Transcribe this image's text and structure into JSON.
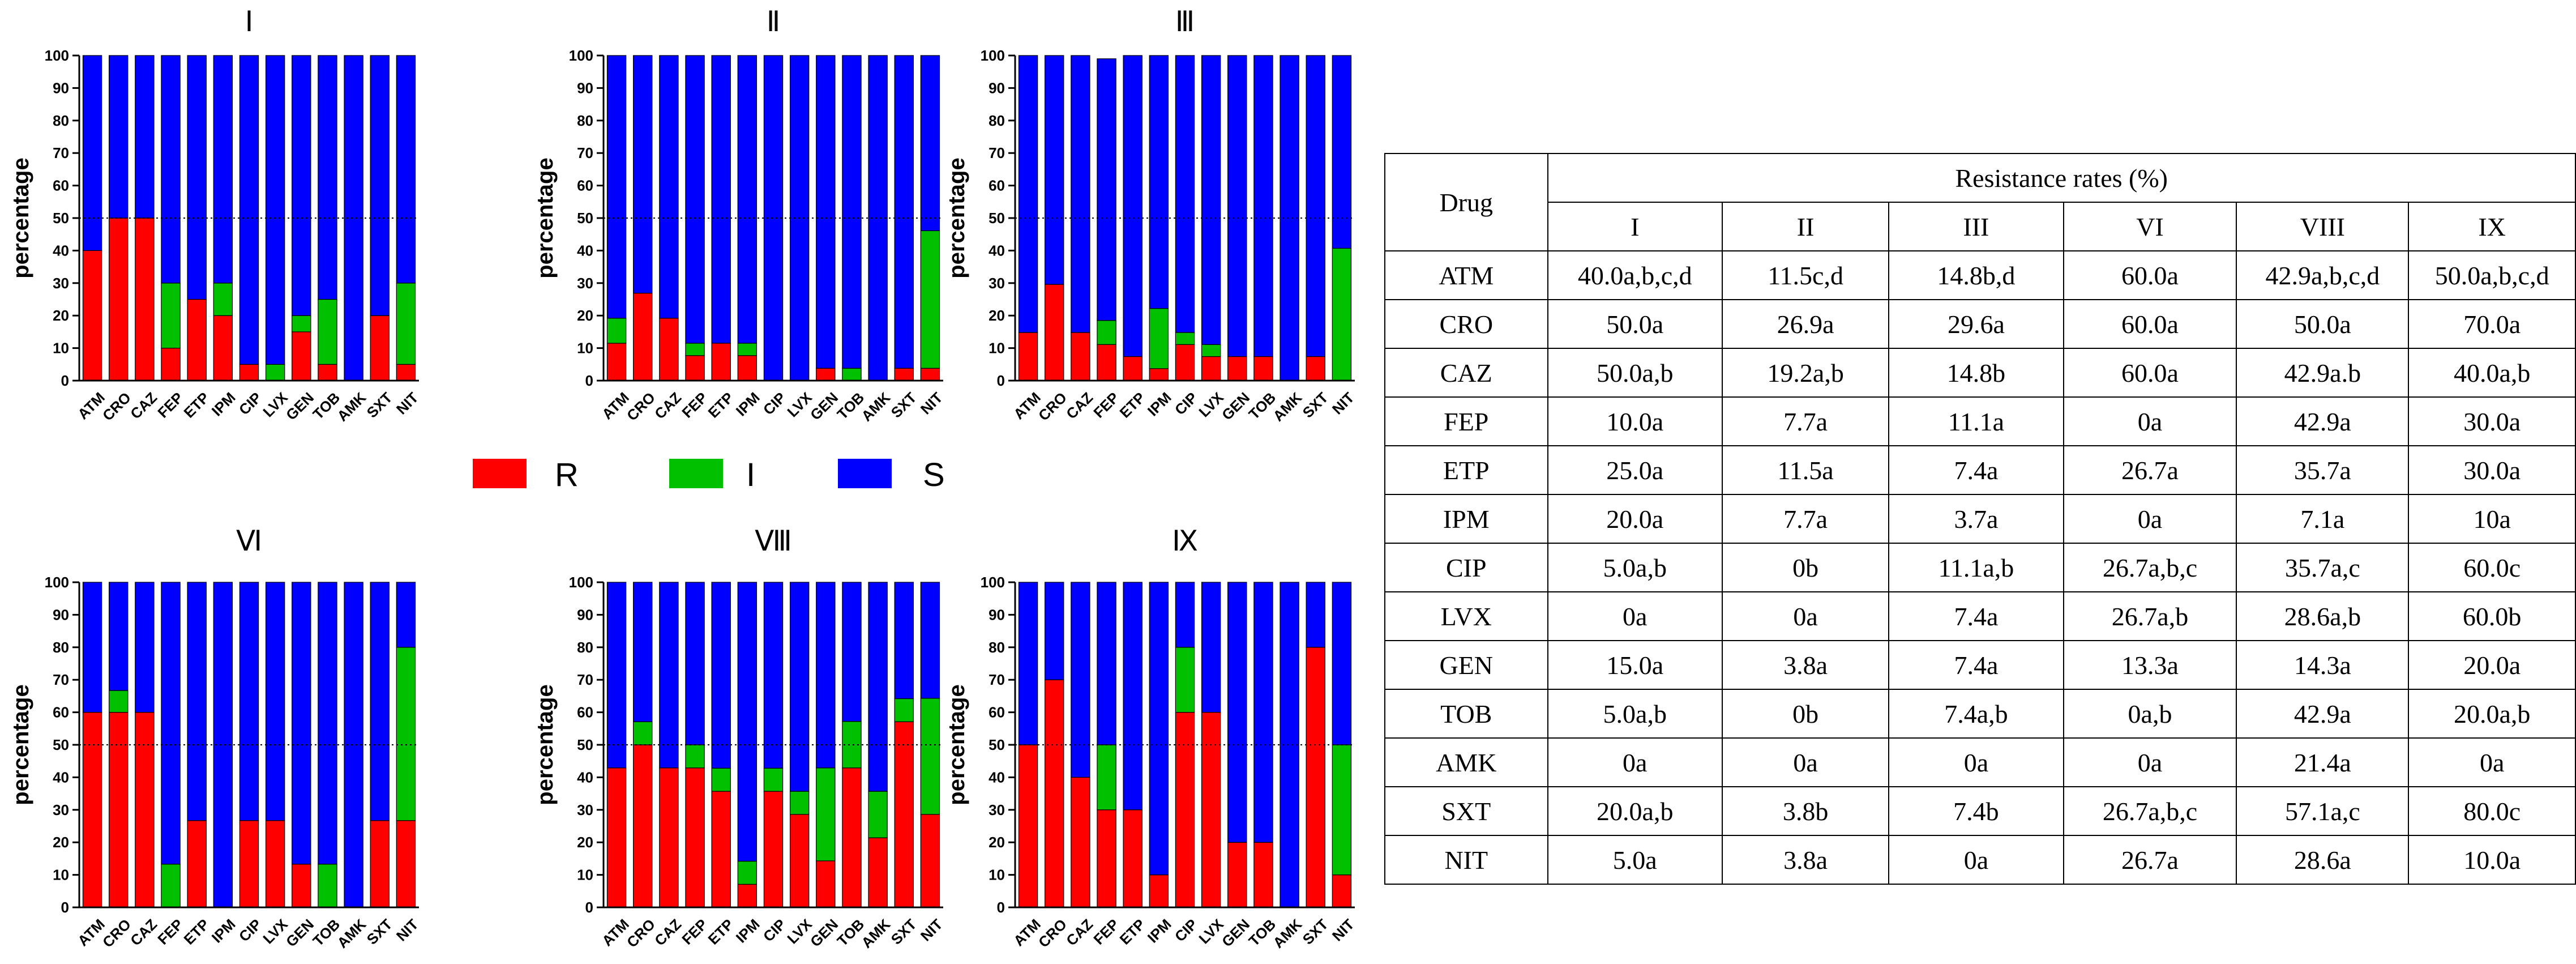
{
  "legend": [
    {
      "key": "R",
      "label": "R",
      "color": "#ff0000"
    },
    {
      "key": "I",
      "label": "I",
      "color": "#00c000"
    },
    {
      "key": "S",
      "label": "S",
      "color": "#0000ff"
    }
  ],
  "chart_data": [
    {
      "type": "bar",
      "stacked": true,
      "title": "Ⅰ",
      "ylabel": "percentage",
      "ylim": [
        0,
        100
      ],
      "yticks": [
        0,
        10,
        20,
        30,
        40,
        50,
        60,
        70,
        80,
        90,
        100
      ],
      "reference_line": 50,
      "categories": [
        "ATM",
        "CRO",
        "CAZ",
        "FEP",
        "ETP",
        "IPM",
        "CIP",
        "LVX",
        "GEN",
        "TOB",
        "AMK",
        "SXT",
        "NIT"
      ],
      "series": [
        {
          "name": "R",
          "values": [
            40,
            50,
            50,
            10,
            25,
            20,
            5,
            0,
            15,
            5,
            0,
            20,
            5
          ]
        },
        {
          "name": "I",
          "values": [
            0,
            0,
            0,
            20,
            0,
            10,
            0,
            5,
            5,
            20,
            0,
            0,
            25
          ]
        },
        {
          "name": "S",
          "values": [
            60,
            50,
            50,
            70,
            75,
            70,
            95,
            95,
            80,
            75,
            100,
            80,
            70
          ]
        }
      ]
    },
    {
      "type": "bar",
      "stacked": true,
      "title": "Ⅱ",
      "ylabel": "percentage",
      "ylim": [
        0,
        100
      ],
      "yticks": [
        0,
        10,
        20,
        30,
        40,
        50,
        60,
        70,
        80,
        90,
        100
      ],
      "reference_line": 50,
      "categories": [
        "ATM",
        "CRO",
        "CAZ",
        "FEP",
        "ETP",
        "IPM",
        "CIP",
        "LVX",
        "GEN",
        "TOB",
        "AMK",
        "SXT",
        "NIT"
      ],
      "series": [
        {
          "name": "R",
          "values": [
            11.5,
            26.9,
            19.2,
            7.7,
            11.5,
            7.7,
            0,
            0,
            3.8,
            0,
            0,
            3.8,
            3.8
          ]
        },
        {
          "name": "I",
          "values": [
            7.7,
            0,
            0,
            3.8,
            0,
            3.8,
            0,
            0,
            0,
            3.8,
            0,
            0,
            42.3
          ]
        },
        {
          "name": "S",
          "values": [
            80.8,
            73.1,
            80.8,
            88.5,
            88.5,
            88.5,
            100,
            100,
            96.2,
            96.2,
            100,
            96.2,
            53.9
          ]
        }
      ]
    },
    {
      "type": "bar",
      "stacked": true,
      "title": "Ⅲ",
      "ylabel": "percentage",
      "ylim": [
        0,
        100
      ],
      "yticks": [
        0,
        10,
        20,
        30,
        40,
        50,
        60,
        70,
        80,
        90,
        100
      ],
      "reference_line": 50,
      "categories": [
        "ATM",
        "CRO",
        "CAZ",
        "FEP",
        "ETP",
        "IPM",
        "CIP",
        "LVX",
        "GEN",
        "TOB",
        "AMK",
        "SXT",
        "NIT"
      ],
      "series": [
        {
          "name": "R",
          "values": [
            14.8,
            29.6,
            14.8,
            11.1,
            7.4,
            3.7,
            11.1,
            7.4,
            7.4,
            7.4,
            0,
            7.4,
            0
          ]
        },
        {
          "name": "I",
          "values": [
            0,
            0,
            0,
            7.4,
            0,
            18.5,
            3.7,
            3.7,
            0,
            0,
            0,
            0,
            40.7
          ]
        },
        {
          "name": "S",
          "values": [
            85.2,
            70.4,
            85.2,
            80.5,
            92.6,
            77.8,
            85.2,
            88.9,
            92.6,
            92.6,
            100,
            92.6,
            59.3
          ]
        }
      ]
    },
    {
      "type": "bar",
      "stacked": true,
      "title": "Ⅵ",
      "ylabel": "percentage",
      "ylim": [
        0,
        100
      ],
      "yticks": [
        0,
        10,
        20,
        30,
        40,
        50,
        60,
        70,
        80,
        90,
        100
      ],
      "reference_line": 50,
      "categories": [
        "ATM",
        "CRO",
        "CAZ",
        "FEP",
        "ETP",
        "IPM",
        "CIP",
        "LVX",
        "GEN",
        "TOB",
        "AMK",
        "SXT",
        "NIT"
      ],
      "series": [
        {
          "name": "R",
          "values": [
            60,
            60,
            60,
            0,
            26.7,
            0,
            26.7,
            26.7,
            13.3,
            0,
            0,
            26.7,
            26.7
          ]
        },
        {
          "name": "I",
          "values": [
            0,
            6.7,
            0,
            13.3,
            0,
            0,
            0,
            0,
            0,
            13.3,
            0,
            0,
            53.3
          ]
        },
        {
          "name": "S",
          "values": [
            40,
            33.3,
            40,
            86.7,
            73.3,
            100,
            73.3,
            73.3,
            86.7,
            86.7,
            100,
            73.3,
            20
          ]
        }
      ]
    },
    {
      "type": "bar",
      "stacked": true,
      "title": "Ⅷ",
      "ylabel": "percentage",
      "ylim": [
        0,
        100
      ],
      "yticks": [
        0,
        10,
        20,
        30,
        40,
        50,
        60,
        70,
        80,
        90,
        100
      ],
      "reference_line": 50,
      "categories": [
        "ATM",
        "CRO",
        "CAZ",
        "FEP",
        "ETP",
        "IPM",
        "CIP",
        "LVX",
        "GEN",
        "TOB",
        "AMK",
        "SXT",
        "NIT"
      ],
      "series": [
        {
          "name": "R",
          "values": [
            42.9,
            50,
            42.9,
            42.9,
            35.7,
            7.1,
            35.7,
            28.6,
            14.3,
            42.9,
            21.4,
            57.1,
            28.6
          ]
        },
        {
          "name": "I",
          "values": [
            0,
            7.1,
            0,
            7.1,
            7.1,
            7.1,
            7.1,
            7.1,
            28.6,
            14.3,
            14.3,
            7.1,
            35.7
          ]
        },
        {
          "name": "S",
          "values": [
            57.1,
            42.9,
            57.1,
            50,
            57.2,
            85.8,
            57.2,
            64.3,
            57.1,
            42.8,
            64.3,
            35.8,
            35.7
          ]
        }
      ]
    },
    {
      "type": "bar",
      "stacked": true,
      "title": "Ⅸ",
      "ylabel": "percentage",
      "ylim": [
        0,
        100
      ],
      "yticks": [
        0,
        10,
        20,
        30,
        40,
        50,
        60,
        70,
        80,
        90,
        100
      ],
      "reference_line": 50,
      "categories": [
        "ATM",
        "CRO",
        "CAZ",
        "FEP",
        "ETP",
        "IPM",
        "CIP",
        "LVX",
        "GEN",
        "TOB",
        "AMK",
        "SXT",
        "NIT"
      ],
      "series": [
        {
          "name": "R",
          "values": [
            50,
            70,
            40,
            30,
            30,
            10,
            60,
            60,
            20,
            20,
            0,
            80,
            10
          ]
        },
        {
          "name": "I",
          "values": [
            0,
            0,
            0,
            20,
            0,
            0,
            20,
            0,
            0,
            0,
            0,
            0,
            40
          ]
        },
        {
          "name": "S",
          "values": [
            50,
            30,
            60,
            50,
            70,
            90,
            20,
            40,
            80,
            80,
            100,
            20,
            50
          ]
        }
      ]
    }
  ],
  "table": {
    "drug_header": "Drug",
    "group_header": "Resistance rates (%)",
    "columns": [
      "I",
      "II",
      "III",
      "VI",
      "VIII",
      "IX"
    ],
    "rows": [
      {
        "drug": "ATM",
        "values": [
          "40.0a,b,c,d",
          "11.5c,d",
          "14.8b,d",
          "60.0a",
          "42.9a,b,c,d",
          "50.0a,b,c,d"
        ]
      },
      {
        "drug": "CRO",
        "values": [
          "50.0a",
          "26.9a",
          "29.6a",
          "60.0a",
          "50.0a",
          "70.0a"
        ]
      },
      {
        "drug": "CAZ",
        "values": [
          "50.0a,b",
          "19.2a,b",
          "14.8b",
          "60.0a",
          "42.9a.b",
          "40.0a,b"
        ]
      },
      {
        "drug": "FEP",
        "values": [
          "10.0a",
          "7.7a",
          "11.1a",
          "0a",
          "42.9a",
          "30.0a"
        ]
      },
      {
        "drug": "ETP",
        "values": [
          "25.0a",
          "11.5a",
          "7.4a",
          "26.7a",
          "35.7a",
          "30.0a"
        ]
      },
      {
        "drug": "IPM",
        "values": [
          "20.0a",
          "7.7a",
          "3.7a",
          "0a",
          "7.1a",
          "10a"
        ]
      },
      {
        "drug": "CIP",
        "values": [
          "5.0a,b",
          "0b",
          "11.1a,b",
          "26.7a,b,c",
          "35.7a,c",
          "60.0c"
        ]
      },
      {
        "drug": "LVX",
        "values": [
          "0a",
          "0a",
          "7.4a",
          "26.7a,b",
          "28.6a,b",
          "60.0b"
        ]
      },
      {
        "drug": "GEN",
        "values": [
          "15.0a",
          "3.8a",
          "7.4a",
          "13.3a",
          "14.3a",
          "20.0a"
        ]
      },
      {
        "drug": "TOB",
        "values": [
          "5.0a,b",
          "0b",
          "7.4a,b",
          "0a,b",
          "42.9a",
          "20.0a,b"
        ]
      },
      {
        "drug": "AMK",
        "values": [
          "0a",
          "0a",
          "0a",
          "0a",
          "21.4a",
          "0a"
        ]
      },
      {
        "drug": "SXT",
        "values": [
          "20.0a,b",
          "3.8b",
          "7.4b",
          "26.7a,b,c",
          "57.1a,c",
          "80.0c"
        ]
      },
      {
        "drug": "NIT",
        "values": [
          "5.0a",
          "3.8a",
          "0a",
          "26.7a",
          "28.6a",
          "10.0a"
        ]
      }
    ]
  }
}
